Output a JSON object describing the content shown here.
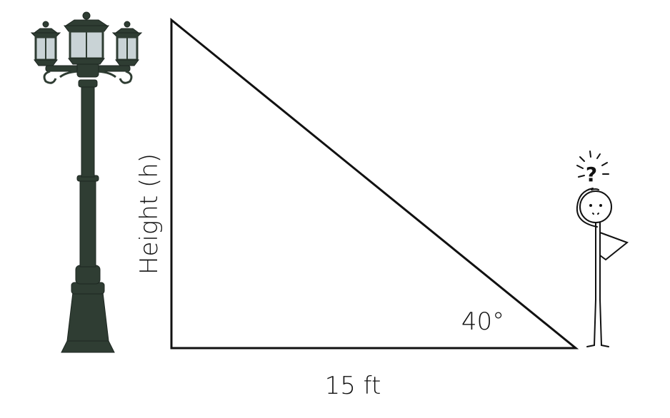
{
  "diagram": {
    "height_label": "Height (h)",
    "base_label": "15 ft",
    "angle_label": "40°",
    "question_mark": "?"
  },
  "icons": {
    "lamp": "street-lamp-post-icon",
    "person": "confused-stick-figure-icon"
  },
  "colors": {
    "lamp_body": "#2f3d33",
    "lamp_glass": "#c9d3d6",
    "line": "#111111",
    "background": "#ffffff"
  }
}
